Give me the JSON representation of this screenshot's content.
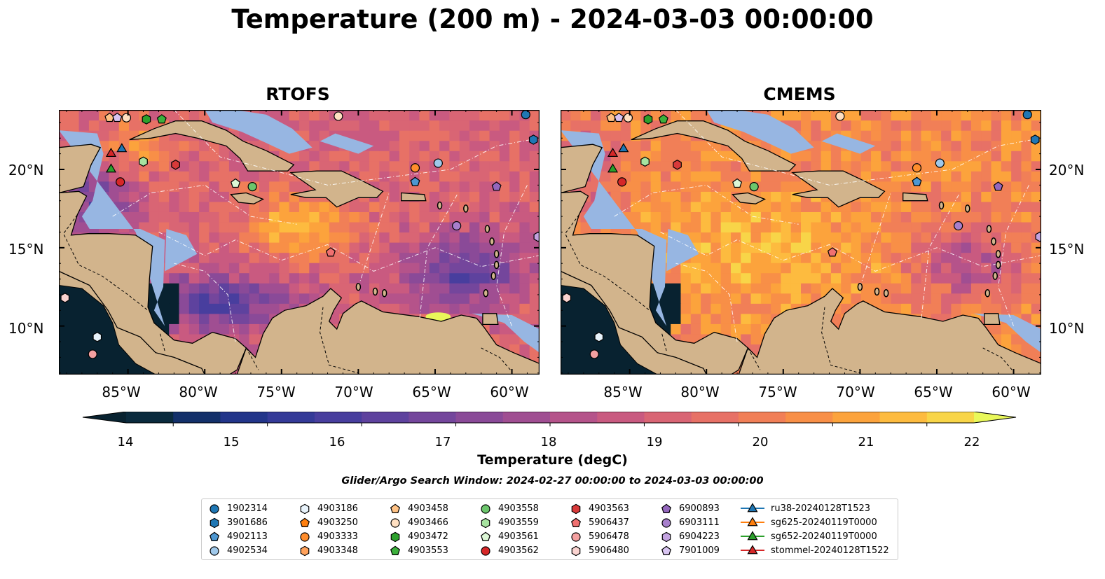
{
  "title": "Temperature (200 m) - 2024-03-03 00:00:00",
  "chart_data": [
    {
      "type": "heatmap",
      "title": "RTOFS",
      "xlabel": "",
      "ylabel": "",
      "x_ticks": [
        "85°W",
        "80°W",
        "75°W",
        "70°W",
        "65°W",
        "60°W"
      ],
      "y_ticks": [
        "10°N",
        "15°N",
        "20°N"
      ],
      "x_range": [
        -89.5,
        -58.2
      ],
      "y_range": [
        6.9,
        23.8
      ],
      "field_range": [
        14,
        22
      ],
      "summary": "warm (>21) band across central Caribbean 16-18N and near Yucatan; cold (14-16) in southwestern Caribbean and east of Lesser Antilles; Pacific side <14"
    },
    {
      "type": "heatmap",
      "title": "CMEMS",
      "xlabel": "",
      "ylabel": "",
      "x_ticks": [
        "85°W",
        "80°W",
        "75°W",
        "70°W",
        "65°W",
        "60°W"
      ],
      "y_ticks": [
        "10°N",
        "15°N",
        "20°N"
      ],
      "x_range": [
        -89.5,
        -58.2
      ],
      "y_range": [
        6.9,
        23.8
      ],
      "field_range": [
        14,
        22
      ],
      "summary": "widespread warm water (>21) over central and western Caribbean; colder pockets 15-17 east near 60-65W"
    }
  ],
  "colorbar": {
    "label": "Temperature (degC)",
    "ticks": [
      "14",
      "15",
      "16",
      "17",
      "18",
      "19",
      "20",
      "21",
      "22"
    ],
    "min": 13.5,
    "max": 22.5,
    "step": 0.5,
    "colors": [
      "#0a2a3d",
      "#13306a",
      "#22358a",
      "#343a98",
      "#483e9e",
      "#5e429e",
      "#74469c",
      "#8a4a98",
      "#a04e92",
      "#b5538a",
      "#c95a80",
      "#d96574",
      "#e77166",
      "#f17f57",
      "#f88f47",
      "#fca33c",
      "#fdbb3f",
      "#f8d548"
    ],
    "under_color": "#082230",
    "over_color": "#e9f85a"
  },
  "search_window": "Glider/Argo Search Window: 2024-02-27 00:00:00 to 2024-03-03 00:00:00",
  "legend": [
    {
      "label": "1902314",
      "marker": "circle",
      "color": "#1f77b4"
    },
    {
      "label": "3901686",
      "marker": "hexagon",
      "color": "#1f77b4"
    },
    {
      "label": "4902113",
      "marker": "pentagon",
      "color": "#4e97d1"
    },
    {
      "label": "4902534",
      "marker": "circle",
      "color": "#9fc8ea"
    },
    {
      "label": "4903186",
      "marker": "hexagon",
      "color": "#e8f3fb"
    },
    {
      "label": "4903250",
      "marker": "pentagon",
      "color": "#ff7f0e"
    },
    {
      "label": "4903333",
      "marker": "circle",
      "color": "#ff8d2c"
    },
    {
      "label": "4903348",
      "marker": "hexagon",
      "color": "#ffa15a"
    },
    {
      "label": "4903458",
      "marker": "pentagon",
      "color": "#ffc285"
    },
    {
      "label": "4903466",
      "marker": "circle",
      "color": "#ffe0c2"
    },
    {
      "label": "4903472",
      "marker": "hexagon",
      "color": "#2ca02c"
    },
    {
      "label": "4903553",
      "marker": "pentagon",
      "color": "#3cb03c"
    },
    {
      "label": "4903558",
      "marker": "circle",
      "color": "#6cc66c"
    },
    {
      "label": "4903559",
      "marker": "hexagon",
      "color": "#a7e3a0"
    },
    {
      "label": "4903561",
      "marker": "pentagon",
      "color": "#dcf7d6"
    },
    {
      "label": "4903562",
      "marker": "circle",
      "color": "#d62728"
    },
    {
      "label": "4903563",
      "marker": "hexagon",
      "color": "#d83a3a"
    },
    {
      "label": "5906437",
      "marker": "pentagon",
      "color": "#f07070"
    },
    {
      "label": "5906478",
      "marker": "circle",
      "color": "#f4a0a0"
    },
    {
      "label": "5906480",
      "marker": "hexagon",
      "color": "#fad3d0"
    },
    {
      "label": "6900893",
      "marker": "pentagon",
      "color": "#9467bd"
    },
    {
      "label": "6903111",
      "marker": "circle",
      "color": "#a77fcc"
    },
    {
      "label": "6904223",
      "marker": "hexagon",
      "color": "#c3a3e0"
    },
    {
      "label": "7901009",
      "marker": "pentagon",
      "color": "#d9c5f2"
    },
    {
      "label": "ru38-20240128T1523",
      "marker": "triangle-line",
      "color": "#1f77b4"
    },
    {
      "label": "sg625-20240119T0000",
      "marker": "triangle-line",
      "color": "#ff7f0e"
    },
    {
      "label": "sg652-20240119T0000",
      "marker": "triangle-line",
      "color": "#2ca02c"
    },
    {
      "label": "stommel-20240128T1522",
      "marker": "triangle-line",
      "color": "#d62728"
    }
  ]
}
